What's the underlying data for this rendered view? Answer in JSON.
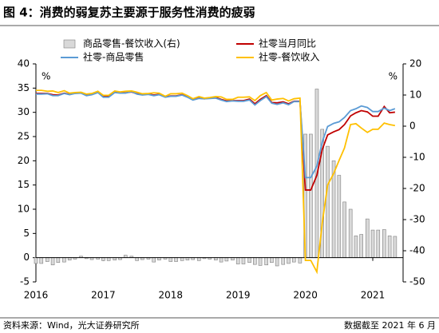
{
  "chart_data": {
    "type": "combo",
    "title": "图 4：消费的弱复苏主要源于服务性消费的疲弱",
    "source": "资料来源：Wind，光大证券研究所",
    "note": "数据截至 2021 年 6 月",
    "ylabel": "%",
    "y2label": "%",
    "xlim": [
      2016,
      2021.45
    ],
    "xticks": [
      2016,
      2017,
      2018,
      2019,
      2020,
      2021
    ],
    "ylim": [
      -5,
      40
    ],
    "yticks": [
      -5,
      0,
      5,
      10,
      15,
      20,
      25,
      30,
      35,
      40
    ],
    "y2lim": [
      -50,
      20
    ],
    "y2ticks": [
      -50,
      -40,
      -30,
      -20,
      -10,
      0,
      10,
      20
    ],
    "x": [
      2016.0,
      2016.08,
      2016.17,
      2016.25,
      2016.33,
      2016.42,
      2016.5,
      2016.58,
      2016.67,
      2016.75,
      2016.83,
      2016.92,
      2017.0,
      2017.08,
      2017.17,
      2017.25,
      2017.33,
      2017.42,
      2017.5,
      2017.58,
      2017.67,
      2017.75,
      2017.83,
      2017.92,
      2018.0,
      2018.08,
      2018.17,
      2018.25,
      2018.33,
      2018.42,
      2018.5,
      2018.58,
      2018.67,
      2018.75,
      2018.83,
      2018.92,
      2019.0,
      2019.08,
      2019.17,
      2019.25,
      2019.33,
      2019.42,
      2019.5,
      2019.58,
      2019.67,
      2019.75,
      2019.83,
      2019.92,
      2020.0,
      2020.08,
      2020.17,
      2020.25,
      2020.33,
      2020.42,
      2020.5,
      2020.58,
      2020.67,
      2020.75,
      2020.83,
      2020.92,
      2021.0,
      2021.08,
      2021.17,
      2021.25,
      2021.33
    ],
    "series": [
      {
        "name": "商品零售-餐饮收入(右)",
        "type": "bar",
        "color": "#d9d9d9",
        "axis": "y",
        "values": [
          -1.2,
          -1.2,
          -0.8,
          -1.5,
          -1.0,
          -0.9,
          -0.5,
          -0.3,
          0.3,
          -0.2,
          -0.4,
          -0.3,
          -0.6,
          -0.6,
          -0.5,
          -0.4,
          0.5,
          0.3,
          -0.6,
          -0.4,
          -0.3,
          -0.9,
          -0.5,
          -0.3,
          -0.8,
          -0.8,
          -0.6,
          -0.5,
          -0.4,
          -0.6,
          -0.2,
          -0.3,
          -0.5,
          -0.9,
          -0.7,
          -0.5,
          -1.3,
          -1.3,
          -1.0,
          -1.4,
          -1.6,
          -1.5,
          -1.0,
          -1.7,
          -1.4,
          -1.2,
          -0.9,
          -1.1,
          25.5,
          25.5,
          34.8,
          26.5,
          23.0,
          20.0,
          17.0,
          11.5,
          10.0,
          4.5,
          4.8,
          8.0,
          5.7,
          5.7,
          5.8,
          4.5,
          4.4
        ]
      },
      {
        "name": "社零当月同比",
        "type": "line",
        "color": "#c00000",
        "axis": "y2",
        "values": [
          10.5,
          10.5,
          10.5,
          10.1,
          10.0,
          10.6,
          10.2,
          10.6,
          10.7,
          10.0,
          10.2,
          10.9,
          9.5,
          9.5,
          10.9,
          10.7,
          10.7,
          11.0,
          10.4,
          10.1,
          10.3,
          10.0,
          10.2,
          9.4,
          9.7,
          9.7,
          10.1,
          9.4,
          8.5,
          9.0,
          8.8,
          9.0,
          9.2,
          8.6,
          8.1,
          8.2,
          8.2,
          8.2,
          8.7,
          7.2,
          8.6,
          9.8,
          7.6,
          7.5,
          7.8,
          7.2,
          8.0,
          8.0,
          -20.5,
          -20.5,
          -15.8,
          -7.5,
          -2.8,
          -1.8,
          -1.1,
          0.5,
          3.3,
          4.3,
          5.0,
          4.6,
          3.2,
          3.2,
          6.3,
          4.3,
          4.5
        ]
      },
      {
        "name": "社零-商品零售",
        "type": "line",
        "color": "#5b9bd5",
        "axis": "y2",
        "values": [
          10.3,
          10.3,
          10.4,
          9.8,
          9.8,
          10.5,
          10.1,
          10.5,
          10.6,
          9.8,
          10.1,
          10.8,
          9.3,
          9.3,
          10.8,
          10.6,
          10.6,
          11.1,
          10.3,
          10.0,
          10.2,
          9.8,
          10.1,
          9.3,
          9.6,
          9.6,
          10.0,
          9.3,
          8.4,
          8.9,
          8.8,
          8.9,
          9.0,
          8.4,
          7.9,
          8.1,
          8.0,
          8.0,
          8.4,
          6.8,
          8.2,
          9.5,
          7.4,
          7.0,
          7.5,
          6.9,
          7.9,
          7.9,
          -16.5,
          -16.5,
          -12.8,
          -5.1,
          -0.1,
          0.9,
          1.4,
          2.8,
          5.0,
          5.6,
          6.5,
          6.0,
          4.7,
          4.7,
          5.8,
          5.0,
          5.6
        ]
      },
      {
        "name": "社零-餐饮收入",
        "type": "line",
        "color": "#ffc000",
        "axis": "y2",
        "values": [
          11.5,
          11.5,
          11.2,
          11.3,
          10.8,
          11.4,
          10.6,
          10.8,
          10.9,
          10.3,
          10.5,
          11.2,
          9.9,
          9.9,
          11.3,
          11.0,
          11.2,
          11.3,
          10.9,
          10.4,
          10.5,
          10.7,
          10.6,
          9.6,
          10.4,
          10.4,
          10.6,
          9.8,
          8.8,
          9.5,
          9.0,
          9.2,
          9.5,
          9.4,
          8.6,
          8.6,
          9.3,
          9.3,
          9.4,
          8.2,
          9.8,
          10.8,
          8.4,
          8.7,
          8.9,
          8.1,
          8.8,
          9.0,
          -43.1,
          -43.1,
          -46.8,
          -31.1,
          -18.9,
          -15.2,
          -11.0,
          -7.0,
          0.5,
          0.8,
          -0.6,
          -2.0,
          -1.0,
          -1.0,
          1.0,
          0.5,
          0.2
        ]
      }
    ]
  }
}
